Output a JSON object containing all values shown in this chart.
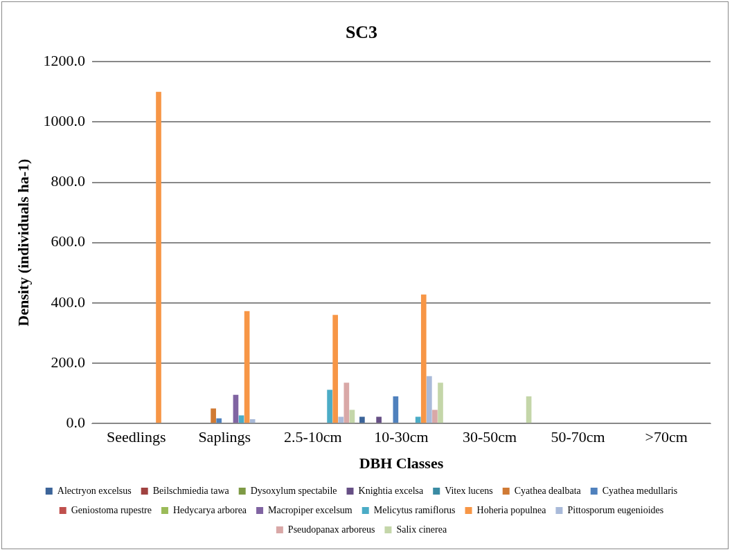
{
  "chart_data": {
    "type": "bar",
    "title": "SC3",
    "xlabel": "DBH Classes",
    "ylabel": "Density (individuals ha-1)",
    "categories": [
      "Seedlings",
      "Saplings",
      "2.5-10cm",
      "10-30cm",
      "30-50cm",
      "50-70cm",
      ">70cm"
    ],
    "ylim": [
      0,
      1200
    ],
    "yticks": [
      {
        "value": 0,
        "label": "0.0"
      },
      {
        "value": 200,
        "label": "200.0"
      },
      {
        "value": 400,
        "label": "400.0"
      },
      {
        "value": 600,
        "label": "600.0"
      },
      {
        "value": 800,
        "label": "800.0"
      },
      {
        "value": 1000,
        "label": "1000.0"
      },
      {
        "value": 1200,
        "label": "1200.0"
      }
    ],
    "grid": "y",
    "legend": "bottom",
    "series": [
      {
        "name": "Alectryon excelsus",
        "color": "#3c6499",
        "values": [
          0,
          0,
          0,
          22,
          0,
          0,
          0
        ]
      },
      {
        "name": "Beilschmiedia tawa",
        "color": "#a04240",
        "values": [
          0,
          0,
          0,
          0,
          0,
          0,
          0
        ]
      },
      {
        "name": "Dysoxylum spectabile",
        "color": "#7e9a45",
        "values": [
          0,
          0,
          0,
          0,
          0,
          0,
          0
        ]
      },
      {
        "name": "Knightia excelsa",
        "color": "#664f85",
        "values": [
          0,
          0,
          0,
          22,
          0,
          0,
          0
        ]
      },
      {
        "name": "Vitex lucens",
        "color": "#3a8ba3",
        "values": [
          0,
          0,
          0,
          0,
          0,
          0,
          0
        ]
      },
      {
        "name": "Cyathea dealbata",
        "color": "#d07a34",
        "values": [
          0,
          50,
          0,
          0,
          0,
          0,
          0
        ]
      },
      {
        "name": "Cyathea medullaris",
        "color": "#4f81bd",
        "values": [
          0,
          17,
          0,
          90,
          0,
          0,
          0
        ]
      },
      {
        "name": "Geniostoma rupestre",
        "color": "#c0504d",
        "values": [
          0,
          0,
          0,
          0,
          0,
          0,
          0
        ]
      },
      {
        "name": "Hedycarya arborea",
        "color": "#9bbb59",
        "values": [
          0,
          0,
          0,
          0,
          0,
          0,
          0
        ]
      },
      {
        "name": "Macropiper excelsum",
        "color": "#8064a2",
        "values": [
          0,
          95,
          0,
          0,
          0,
          0,
          0
        ]
      },
      {
        "name": "Melicytus ramiflorus",
        "color": "#4bacc6",
        "values": [
          0,
          27,
          112,
          22,
          0,
          0,
          0
        ]
      },
      {
        "name": "Hoheria populnea",
        "color": "#f79646",
        "values": [
          1100,
          373,
          360,
          428,
          0,
          0,
          0
        ]
      },
      {
        "name": "Pittosporum eugenioides",
        "color": "#a9bad9",
        "values": [
          0,
          14,
          22,
          157,
          0,
          0,
          0
        ]
      },
      {
        "name": "Pseudopanax arboreus",
        "color": "#d9a8a7",
        "values": [
          0,
          0,
          135,
          45,
          0,
          0,
          0
        ]
      },
      {
        "name": "Salix cinerea",
        "color": "#c4d6a9",
        "values": [
          0,
          0,
          45,
          135,
          90,
          0,
          0
        ]
      }
    ]
  }
}
